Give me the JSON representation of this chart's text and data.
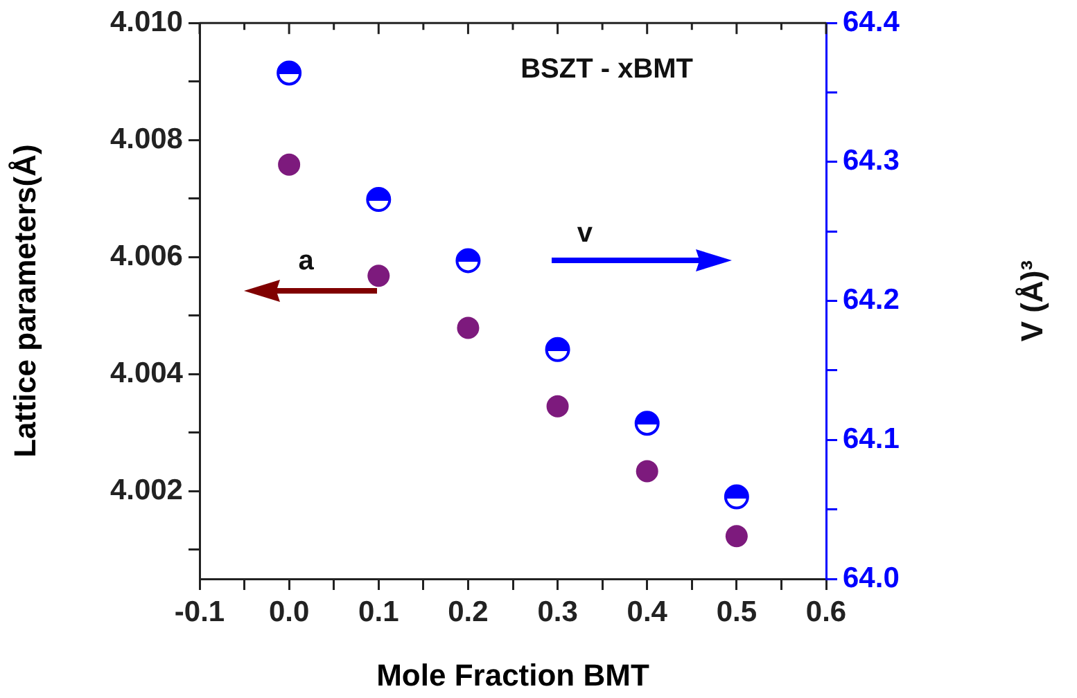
{
  "chart_data": {
    "type": "scatter",
    "title": "BSZT - xBMT",
    "xlabel": "Mole Fraction BMT",
    "ylabel": "Lattice parameters(Å)",
    "y2label": "V (Å)³",
    "x": [
      0,
      0.1,
      0.2,
      0.3,
      0.4,
      0.5
    ],
    "series": [
      {
        "color": "#7d1a7d",
        "marker": "circle",
        "values": [
          4.00758,
          4.00568,
          4.00479,
          4.00345,
          4.00234,
          4.00123
        ]
      },
      {
        "color": "#0000ff",
        "marker": "circle",
        "axis": "y2",
        "values": [
          64.364,
          64.273,
          64.229,
          64.165,
          64.112,
          64.059
        ]
      }
    ],
    "xlim": [
      -0.1,
      0.6
    ],
    "xticks": [
      -0.1,
      {
        "value": -0.05,
        "label": null
      },
      {
        "value": 0,
        "label": "0.0"
      },
      {
        "value": 0.05,
        "label": null
      },
      0.1,
      {
        "value": 0.15,
        "label": null
      },
      0.2,
      {
        "value": 0.25,
        "label": null
      },
      0.3,
      {
        "value": 0.35,
        "label": null
      },
      0.4,
      {
        "value": 0.45,
        "label": null
      },
      0.5,
      {
        "value": 0.55,
        "label": null
      },
      0.6
    ],
    "ylim": [
      4.0005,
      4.01
    ],
    "yticks": [
      {
        "value": 4.001,
        "label": null
      },
      4.002,
      {
        "value": 4.003,
        "label": null
      },
      4.004,
      {
        "value": 4.005,
        "label": null
      },
      4.006,
      {
        "value": 4.007,
        "label": null
      },
      4.008,
      {
        "value": 4.009,
        "label": null
      },
      {
        "value": 4.01,
        "label": "4.010"
      }
    ],
    "y2lim": [
      64.0,
      64.4
    ],
    "y2ticks": [
      {
        "value": 64.0,
        "label": "64.0"
      },
      {
        "value": 64.05,
        "label": null
      },
      64.1,
      {
        "value": 64.15,
        "label": null
      },
      64.2,
      {
        "value": 64.25,
        "label": null
      },
      64.3,
      {
        "value": 64.35,
        "label": null
      },
      64.4
    ],
    "annotations": [
      "a",
      "v"
    ],
    "grid": false,
    "legend": false
  }
}
